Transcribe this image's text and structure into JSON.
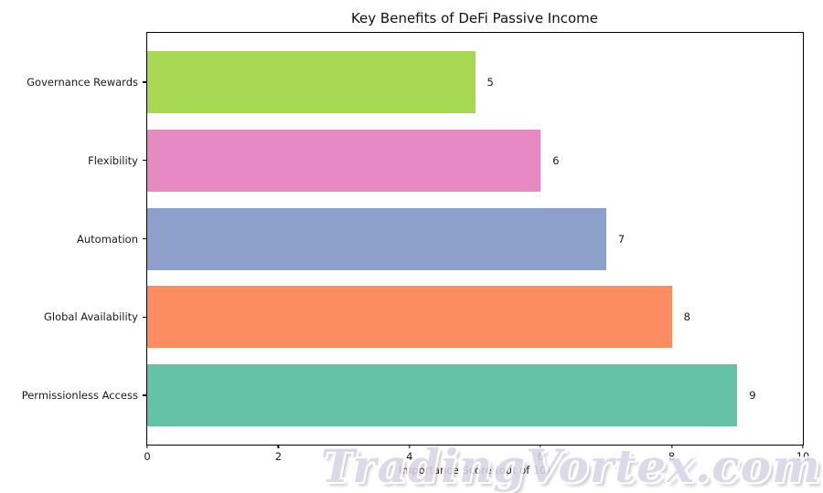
{
  "figure": {
    "watermark": "TradingVortex.com"
  },
  "chart_data": {
    "type": "bar",
    "orientation": "horizontal",
    "title": "Key Benefits of DeFi Passive Income",
    "xlabel": "Importance Score (out of 10)",
    "ylabel": "",
    "categories": [
      "Governance Rewards",
      "Flexibility",
      "Automation",
      "Global Availability",
      "Permissionless Access"
    ],
    "values": [
      5,
      6,
      7,
      8,
      9
    ],
    "value_labels": [
      "5",
      "6",
      "7",
      "8",
      "9"
    ],
    "bar_colors": [
      "#a6d854",
      "#e78ac3",
      "#8da0cb",
      "#fc8d62",
      "#66c2a5"
    ],
    "xlim": [
      0,
      10
    ],
    "xticks": [
      0,
      2,
      4,
      6,
      8,
      10
    ],
    "grid": false,
    "legend": null
  }
}
